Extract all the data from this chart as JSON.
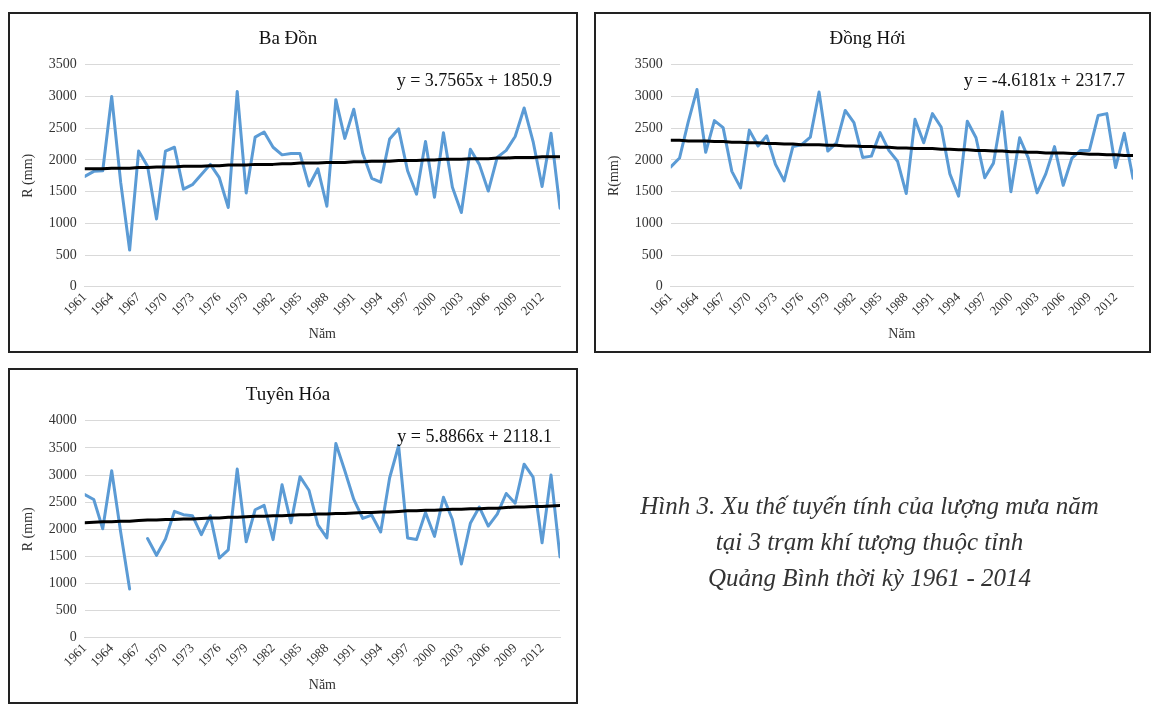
{
  "chart_data": [
    {
      "type": "line",
      "title": "Ba Đồn",
      "xlabel": "Năm",
      "ylabel": "R (mm)",
      "grid": "y",
      "legend": false,
      "marker": "none",
      "x": [
        1961,
        1962,
        1963,
        1964,
        1965,
        1966,
        1967,
        1968,
        1969,
        1970,
        1971,
        1972,
        1973,
        1974,
        1975,
        1976,
        1977,
        1978,
        1979,
        1980,
        1981,
        1982,
        1983,
        1984,
        1985,
        1986,
        1987,
        1988,
        1989,
        1990,
        1991,
        1992,
        1993,
        1994,
        1995,
        1996,
        1997,
        1998,
        1999,
        2000,
        2001,
        2002,
        2003,
        2004,
        2005,
        2006,
        2007,
        2008,
        2009,
        2010,
        2011,
        2012,
        2013,
        2014
      ],
      "xlim": [
        1961,
        2014
      ],
      "xticks": [
        1961,
        1964,
        1967,
        1970,
        1973,
        1976,
        1979,
        1982,
        1985,
        1988,
        1991,
        1994,
        1997,
        2000,
        2003,
        2006,
        2009,
        2012
      ],
      "ylim": [
        0,
        3500
      ],
      "yticks": [
        0,
        500,
        1000,
        1500,
        2000,
        2500,
        3000,
        3500
      ],
      "series": [
        {
          "color": "#5b9bd5",
          "values": [
            1740,
            1820,
            1830,
            3000,
            1650,
            580,
            2140,
            1900,
            1070,
            2140,
            2200,
            1540,
            1610,
            1770,
            1930,
            1720,
            1250,
            3080,
            1480,
            2360,
            2440,
            2200,
            2080,
            2100,
            2100,
            1590,
            1860,
            1270,
            2950,
            2340,
            2800,
            2100,
            1710,
            1650,
            2330,
            2490,
            1830,
            1460,
            2290,
            1410,
            2430,
            1570,
            1170,
            2170,
            1930,
            1510,
            2040,
            2150,
            2370,
            2820,
            2290,
            1580,
            2420,
            1240
          ]
        },
        {
          "color": "#000000",
          "values": [
            1860,
            1860,
            1860,
            1870,
            1870,
            1870,
            1880,
            1880,
            1890,
            1890,
            1890,
            1900,
            1900,
            1900,
            1910,
            1910,
            1920,
            1920,
            1920,
            1930,
            1930,
            1930,
            1940,
            1940,
            1950,
            1950,
            1950,
            1960,
            1960,
            1960,
            1970,
            1970,
            1980,
            1980,
            1980,
            1990,
            1990,
            1990,
            2000,
            2000,
            2010,
            2010,
            2010,
            2020,
            2020,
            2020,
            2030,
            2030,
            2040,
            2040,
            2040,
            2050,
            2050,
            2050
          ]
        }
      ],
      "annotations": [
        "y = 3.7565x + 1850.9"
      ]
    },
    {
      "type": "line",
      "title": "Đồng Hới",
      "xlabel": "Năm",
      "ylabel": "R(mm)",
      "grid": "y",
      "legend": false,
      "marker": "none",
      "x": [
        1961,
        1962,
        1963,
        1964,
        1965,
        1966,
        1967,
        1968,
        1969,
        1970,
        1971,
        1972,
        1973,
        1974,
        1975,
        1976,
        1977,
        1978,
        1979,
        1980,
        1981,
        1982,
        1983,
        1984,
        1985,
        1986,
        1987,
        1988,
        1989,
        1990,
        1991,
        1992,
        1993,
        1994,
        1995,
        1996,
        1997,
        1998,
        1999,
        2000,
        2001,
        2002,
        2003,
        2004,
        2005,
        2006,
        2007,
        2008,
        2009,
        2010,
        2011,
        2012,
        2013,
        2014
      ],
      "xlim": [
        1961,
        2014
      ],
      "xticks": [
        1961,
        1964,
        1967,
        1970,
        1973,
        1976,
        1979,
        1982,
        1985,
        1988,
        1991,
        1994,
        1997,
        2000,
        2003,
        2006,
        2009,
        2012
      ],
      "ylim": [
        0,
        3500
      ],
      "yticks": [
        0,
        500,
        1000,
        1500,
        2000,
        2500,
        3000,
        3500
      ],
      "series": [
        {
          "color": "#5b9bd5",
          "values": [
            1890,
            2030,
            2600,
            3110,
            2120,
            2620,
            2510,
            1820,
            1560,
            2470,
            2220,
            2380,
            1930,
            1670,
            2210,
            2240,
            2360,
            3070,
            2140,
            2270,
            2780,
            2590,
            2040,
            2060,
            2430,
            2150,
            1980,
            1470,
            2640,
            2270,
            2730,
            2520,
            1780,
            1430,
            2610,
            2350,
            1720,
            1950,
            2760,
            1500,
            2350,
            2030,
            1480,
            1780,
            2210,
            1600,
            2030,
            2150,
            2150,
            2700,
            2730,
            1880,
            2420,
            1710
          ]
        },
        {
          "color": "#000000",
          "values": [
            2310,
            2310,
            2300,
            2300,
            2300,
            2290,
            2290,
            2280,
            2280,
            2270,
            2270,
            2260,
            2260,
            2250,
            2250,
            2240,
            2240,
            2240,
            2230,
            2230,
            2220,
            2220,
            2210,
            2210,
            2200,
            2200,
            2190,
            2190,
            2180,
            2180,
            2180,
            2170,
            2170,
            2160,
            2160,
            2150,
            2150,
            2140,
            2140,
            2130,
            2130,
            2120,
            2120,
            2110,
            2110,
            2110,
            2100,
            2100,
            2090,
            2090,
            2080,
            2080,
            2070,
            2070
          ]
        }
      ],
      "annotations": [
        "y = -4.6181x + 2317.7"
      ]
    },
    {
      "type": "line",
      "title": "Tuyên Hóa",
      "xlabel": "Năm",
      "ylabel": "R (mm)",
      "grid": "y",
      "legend": false,
      "marker": "none",
      "x": [
        1961,
        1962,
        1963,
        1964,
        1965,
        1966,
        1967,
        1968,
        1969,
        1970,
        1971,
        1972,
        1973,
        1974,
        1975,
        1976,
        1977,
        1978,
        1979,
        1980,
        1981,
        1982,
        1983,
        1984,
        1985,
        1986,
        1987,
        1988,
        1989,
        1990,
        1991,
        1992,
        1993,
        1994,
        1995,
        1996,
        1997,
        1998,
        1999,
        2000,
        2001,
        2002,
        2003,
        2004,
        2005,
        2006,
        2007,
        2008,
        2009,
        2010,
        2011,
        2012,
        2013,
        2014
      ],
      "xlim": [
        1961,
        2014
      ],
      "xticks": [
        1961,
        1964,
        1967,
        1970,
        1973,
        1976,
        1979,
        1982,
        1985,
        1988,
        1991,
        1994,
        1997,
        2000,
        2003,
        2006,
        2009,
        2012
      ],
      "ylim": [
        0,
        4000
      ],
      "yticks": [
        0,
        500,
        1000,
        1500,
        2000,
        2500,
        3000,
        3500,
        4000
      ],
      "series": [
        {
          "color": "#5b9bd5",
          "values": [
            2640,
            2550,
            2010,
            3080,
            1950,
            900,
            null,
            1830,
            1520,
            1820,
            2330,
            2270,
            2250,
            1900,
            2250,
            1470,
            1620,
            3110,
            1770,
            2360,
            2440,
            1810,
            2820,
            2120,
            2970,
            2720,
            2080,
            1840,
            3580,
            3080,
            2550,
            2200,
            2260,
            1950,
            2950,
            3540,
            1840,
            1810,
            2310,
            1870,
            2590,
            2180,
            1360,
            2110,
            2410,
            2060,
            2280,
            2660,
            2480,
            3200,
            2960,
            1750,
            3000,
            1490
          ]
        },
        {
          "color": "#000000",
          "values": [
            2120,
            2130,
            2140,
            2140,
            2150,
            2150,
            2160,
            2170,
            2170,
            2180,
            2180,
            2190,
            2190,
            2200,
            2210,
            2210,
            2220,
            2220,
            2230,
            2240,
            2240,
            2250,
            2250,
            2260,
            2270,
            2270,
            2280,
            2280,
            2290,
            2290,
            2300,
            2310,
            2310,
            2320,
            2320,
            2330,
            2340,
            2340,
            2350,
            2350,
            2360,
            2370,
            2370,
            2380,
            2380,
            2390,
            2390,
            2400,
            2410,
            2410,
            2420,
            2420,
            2430,
            2440
          ]
        }
      ],
      "annotations": [
        "y = 5.8866x + 2118.1"
      ]
    },
    {
      "type": "other",
      "annotations": [
        "Hình 3. Xu thế tuyến tính của lượng mưa năm",
        "tại 3 trạm khí tượng thuộc tỉnh",
        "Quảng Bình thời kỳ 1961 - 2014"
      ]
    }
  ]
}
